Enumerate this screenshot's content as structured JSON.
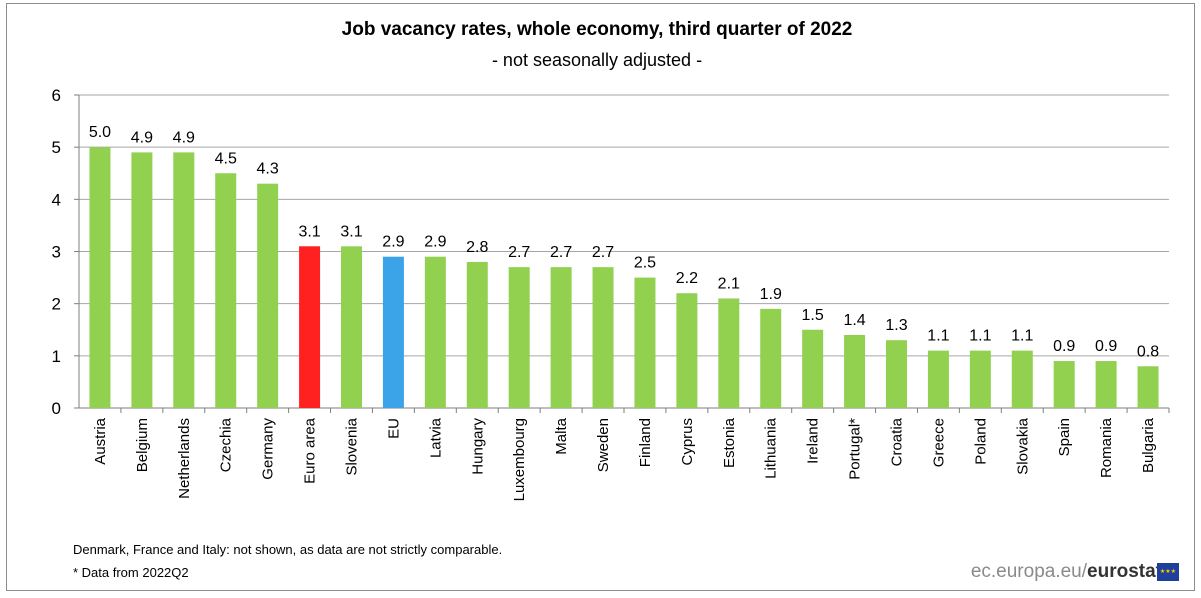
{
  "chart_data": {
    "type": "bar",
    "title": "Job vacancy rates, whole economy, third quarter of 2022",
    "subtitle": "- not seasonally adjusted -",
    "categories": [
      "Austria",
      "Belgium",
      "Netherlands",
      "Czechia",
      "Germany",
      "Euro area",
      "Slovenia",
      "EU",
      "Latvia",
      "Hungary",
      "Luxembourg",
      "Malta",
      "Sweden",
      "Finland",
      "Cyprus",
      "Estonia",
      "Lithuania",
      "Ireland",
      "Portugal*",
      "Croatia",
      "Greece",
      "Poland",
      "Slovakia",
      "Spain",
      "Romania",
      "Bulgaria"
    ],
    "values": [
      5.0,
      4.9,
      4.9,
      4.5,
      4.3,
      3.1,
      3.1,
      2.9,
      2.9,
      2.8,
      2.7,
      2.7,
      2.7,
      2.5,
      2.2,
      2.1,
      1.9,
      1.5,
      1.4,
      1.3,
      1.1,
      1.1,
      1.1,
      0.9,
      0.9,
      0.8
    ],
    "value_labels": [
      "5.0",
      "4.9",
      "4.9",
      "4.5",
      "4.3",
      "3.1",
      "3.1",
      "2.9",
      "2.9",
      "2.8",
      "2.7",
      "2.7",
      "2.7",
      "2.5",
      "2.2",
      "2.1",
      "1.9",
      "1.5",
      "1.4",
      "1.3",
      "1.1",
      "1.1",
      "1.1",
      "0.9",
      "0.9",
      "0.8"
    ],
    "ylim": [
      0,
      6
    ],
    "yticks": [
      "0",
      "1",
      "2",
      "3",
      "4",
      "5",
      "6"
    ],
    "grid": true,
    "colors": {
      "default": "#92d050",
      "highlights": {
        "Euro area": "#ff2020",
        "EU": "#3ba4e8"
      },
      "grid": "#a6a6a6",
      "axis": "#7f7f7f"
    }
  },
  "footnotes": {
    "note": "Denmark, France and Italy: not shown, as data are not strictly comparable.",
    "asterisk": "* Data from 2022Q2"
  },
  "source": {
    "prefix": "ec.europa.eu/",
    "brand": "eurostat"
  }
}
